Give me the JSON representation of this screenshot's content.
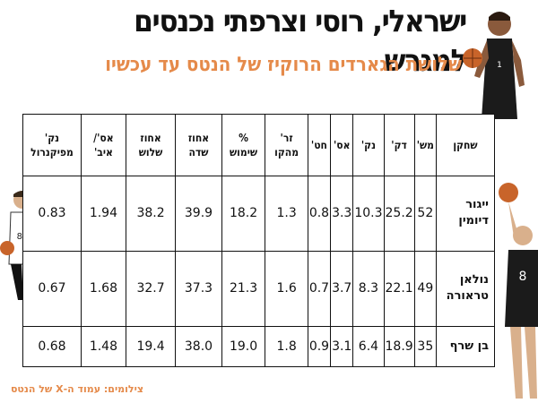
{
  "title": "ישראלי, רוסי וצרפתי נכנסים למגרש",
  "subtitle": "שלושת הגארדים הרוקיז של הנטס עד עכשיו",
  "table": {
    "headers": [
      "שחקן",
      "מש'",
      "דק'",
      "נק'",
      "אס'",
      "חט'",
      "זר' מהקו",
      "% שימוש",
      "אחוז שדה",
      "אחוז שלוש",
      "אס'/ איב'",
      "נק' מפיקנרול"
    ],
    "rows": [
      {
        "player": "ייגור דיומין",
        "cells": [
          "52",
          "25.2",
          "10.3",
          "3.3",
          "0.8",
          "1.3",
          "18.2",
          "39.9",
          "38.2",
          "1.94",
          "0.83"
        ]
      },
      {
        "player": "נולאן טראורה",
        "cells": [
          "49",
          "22.1",
          "8.3",
          "3.7",
          "0.7",
          "1.6",
          "21.3",
          "37.3",
          "32.7",
          "1.68",
          "0.67"
        ]
      },
      {
        "player": "בן שרף",
        "cells": [
          "35",
          "18.9",
          "6.4",
          "3.1",
          "0.9",
          "1.8",
          "19.0",
          "38.0",
          "19.4",
          "1.48",
          "0.68"
        ]
      }
    ]
  },
  "credit": "צילומים: עמוד ה-X של הנטס",
  "colors": {
    "accent": "#e58a4a",
    "jersey": "#1b1b1b"
  }
}
